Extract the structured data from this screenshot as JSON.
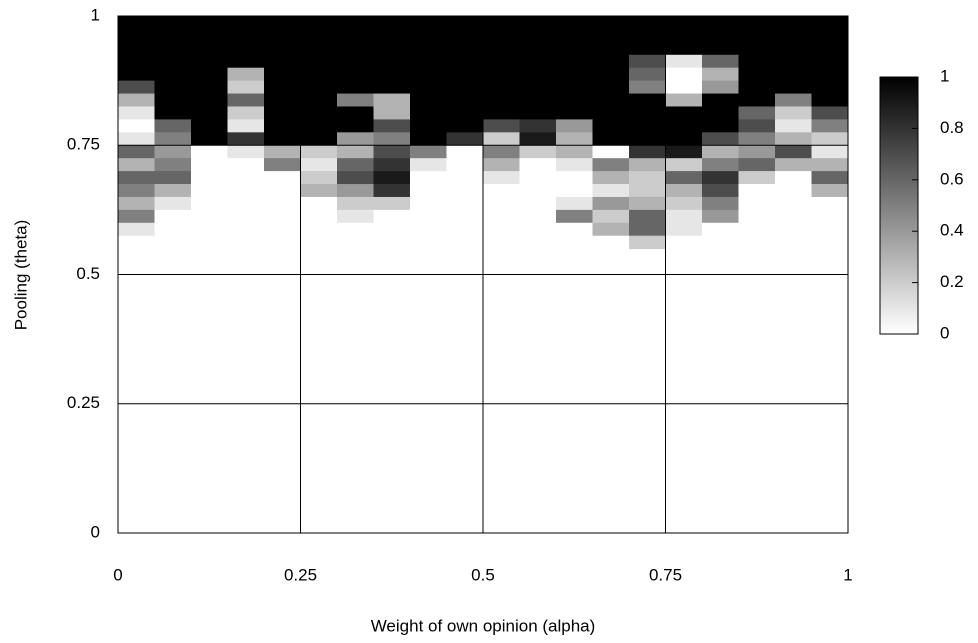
{
  "chart_data": {
    "type": "heatmap",
    "xlabel": "Weight of own opinion (alpha)",
    "ylabel": "Pooling (theta)",
    "xlim": [
      0,
      1
    ],
    "ylim": [
      0,
      1
    ],
    "xticks": [
      0,
      0.25,
      0.5,
      0.75,
      1
    ],
    "yticks": [
      0,
      0.25,
      0.5,
      0.75,
      1
    ],
    "grid": true,
    "x_bins": [
      0,
      0.05,
      0.1,
      0.15,
      0.2,
      0.25,
      0.3,
      0.35,
      0.4,
      0.45,
      0.5,
      0.55,
      0.6,
      0.65,
      0.7,
      0.75,
      0.8,
      0.85,
      0.9,
      0.95,
      1
    ],
    "y_bins": [
      1,
      0.975,
      0.95,
      0.925,
      0.9,
      0.875,
      0.85,
      0.825,
      0.8,
      0.775,
      0.75,
      0.725,
      0.7,
      0.675,
      0.65,
      0.625,
      0.6,
      0.575,
      0.55
    ],
    "z": [
      [
        1,
        1,
        1,
        1,
        1,
        1,
        1,
        1,
        1,
        1,
        1,
        1,
        1,
        1,
        1,
        1,
        1,
        1,
        1,
        1
      ],
      [
        1,
        1,
        1,
        1,
        1,
        1,
        1,
        1,
        1,
        1,
        1,
        1,
        1,
        1,
        1,
        1,
        1,
        1,
        1,
        1
      ],
      [
        1,
        1,
        1,
        1,
        1,
        1,
        1,
        1,
        1,
        1,
        1,
        1,
        1,
        1,
        1,
        1,
        1,
        1,
        1,
        1
      ],
      [
        1,
        1,
        1,
        1,
        1,
        1,
        1,
        1,
        1,
        1,
        1,
        1,
        1,
        1,
        0.7,
        0.1,
        0.6,
        1,
        1,
        1
      ],
      [
        1,
        1,
        1,
        0.3,
        1,
        1,
        1,
        1,
        1,
        1,
        1,
        1,
        1,
        1,
        0.6,
        0,
        0.3,
        1,
        1,
        1
      ],
      [
        0.7,
        1,
        1,
        0.2,
        1,
        1,
        1,
        1,
        1,
        1,
        1,
        1,
        1,
        1,
        0.5,
        0,
        0.4,
        1,
        1,
        1
      ],
      [
        0.3,
        1,
        1,
        0.6,
        1,
        1,
        0.5,
        0.3,
        1,
        1,
        1,
        1,
        1,
        1,
        1,
        0.3,
        1,
        1,
        0.5,
        1
      ],
      [
        0.1,
        1,
        1,
        0.2,
        1,
        1,
        1,
        0.3,
        1,
        1,
        1,
        1,
        1,
        1,
        1,
        1,
        1,
        0.6,
        0.2,
        0.7
      ],
      [
        0,
        0.6,
        1,
        0.1,
        1,
        1,
        1,
        0.7,
        1,
        1,
        0.7,
        0.8,
        0.4,
        1,
        1,
        1,
        1,
        0.7,
        0.1,
        0.5
      ],
      [
        0.1,
        0.5,
        1,
        0.8,
        1,
        1,
        0.4,
        0.5,
        1,
        0.8,
        0.2,
        0.9,
        0.3,
        1,
        1,
        1,
        0.7,
        0.5,
        0.3,
        0.2
      ],
      [
        0.6,
        0.4,
        0,
        0.1,
        0.3,
        0.2,
        0.3,
        0.7,
        0.5,
        0,
        0.5,
        0.2,
        0.3,
        0,
        0.8,
        0.9,
        0.3,
        0.4,
        0.7,
        0.1
      ],
      [
        0.3,
        0.5,
        0,
        0,
        0.5,
        0.1,
        0.6,
        0.8,
        0.1,
        0,
        0.3,
        0,
        0.1,
        0.5,
        0.3,
        0.2,
        0.5,
        0.6,
        0.3,
        0.3
      ],
      [
        0.6,
        0.6,
        0,
        0,
        0,
        0.2,
        0.7,
        0.9,
        0,
        0,
        0.1,
        0,
        0,
        0.3,
        0.2,
        0.6,
        0.8,
        0.2,
        0,
        0.6
      ],
      [
        0.5,
        0.3,
        0,
        0,
        0,
        0.3,
        0.4,
        0.8,
        0,
        0,
        0,
        0,
        0,
        0.1,
        0.2,
        0.3,
        0.7,
        0,
        0,
        0.3
      ],
      [
        0.3,
        0.1,
        0,
        0,
        0,
        0,
        0.2,
        0.2,
        0,
        0,
        0,
        0,
        0.1,
        0.4,
        0.3,
        0.2,
        0.5,
        0,
        0,
        0
      ],
      [
        0.5,
        0,
        0,
        0,
        0,
        0,
        0.1,
        0,
        0,
        0,
        0,
        0,
        0.5,
        0.2,
        0.6,
        0.1,
        0.4,
        0,
        0,
        0
      ],
      [
        0.1,
        0,
        0,
        0,
        0,
        0,
        0,
        0,
        0,
        0,
        0,
        0,
        0,
        0.3,
        0.6,
        0.1,
        0,
        0,
        0,
        0
      ],
      [
        0,
        0,
        0,
        0,
        0,
        0,
        0,
        0,
        0,
        0,
        0,
        0,
        0,
        0,
        0.2,
        0,
        0,
        0,
        0,
        0
      ]
    ],
    "clim": [
      0,
      1
    ],
    "colorbar_ticks": [
      0,
      0.2,
      0.4,
      0.6,
      0.8,
      1
    ],
    "colors": {
      "low": "#ffffff",
      "high": "#000000"
    }
  }
}
